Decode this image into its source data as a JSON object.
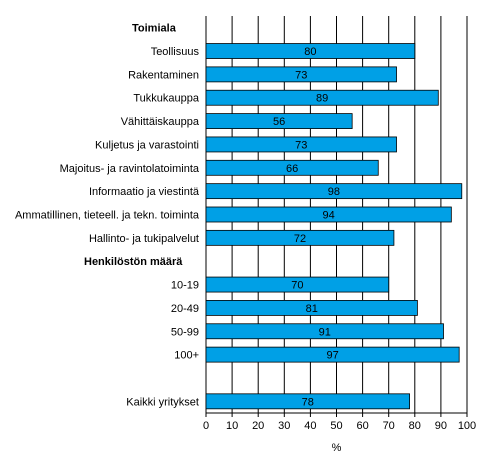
{
  "chart_data": {
    "type": "bar",
    "orientation": "horizontal",
    "groups": [
      "Toimiala",
      "Henkilöstön määrä"
    ],
    "rows": [
      {
        "kind": "group",
        "label": "Toimiala"
      },
      {
        "kind": "bar",
        "label": "Teollisuus",
        "value": 80,
        "value_label": "80"
      },
      {
        "kind": "bar",
        "label": "Rakentaminen",
        "value": 73,
        "value_label": "73"
      },
      {
        "kind": "bar",
        "label": "Tukkukauppa",
        "value": 89,
        "value_label": "89"
      },
      {
        "kind": "bar",
        "label": "Vähittäiskauppa",
        "value": 56,
        "value_label": "56"
      },
      {
        "kind": "bar",
        "label": "Kuljetus ja varastointi",
        "value": 73,
        "value_label": "73"
      },
      {
        "kind": "bar",
        "label": "Majoitus- ja ravintolatoiminta",
        "value": 66,
        "value_label": "66"
      },
      {
        "kind": "bar",
        "label": "Informaatio ja viestintä",
        "value": 98,
        "value_label": "98"
      },
      {
        "kind": "bar",
        "label": "Ammatillinen, tieteell. ja tekn. toiminta",
        "value": 94,
        "value_label": "94"
      },
      {
        "kind": "bar",
        "label": "Hallinto- ja tukipalvelut",
        "value": 72,
        "value_label": "72"
      },
      {
        "kind": "group",
        "label": "Henkilöstön määrä"
      },
      {
        "kind": "bar",
        "label": "10-19",
        "value": 70,
        "value_label": "70"
      },
      {
        "kind": "bar",
        "label": "20-49",
        "value": 81,
        "value_label": "81"
      },
      {
        "kind": "bar",
        "label": "50-99",
        "value": 91,
        "value_label": "91"
      },
      {
        "kind": "bar",
        "label": "100+",
        "value": 97,
        "value_label": "97"
      },
      {
        "kind": "blank",
        "label": ""
      },
      {
        "kind": "bar",
        "label": "Kaikki yritykset",
        "value": 78,
        "value_label": "78"
      }
    ],
    "xlabel": "%",
    "xlim": [
      0,
      100
    ],
    "xticks": [
      "0",
      "10",
      "20",
      "30",
      "40",
      "50",
      "60",
      "70",
      "80",
      "90",
      "100"
    ],
    "grid": true,
    "colors": {
      "bar": "#00a0e6",
      "bar_edge": "#000000",
      "grid": "#000000"
    }
  }
}
